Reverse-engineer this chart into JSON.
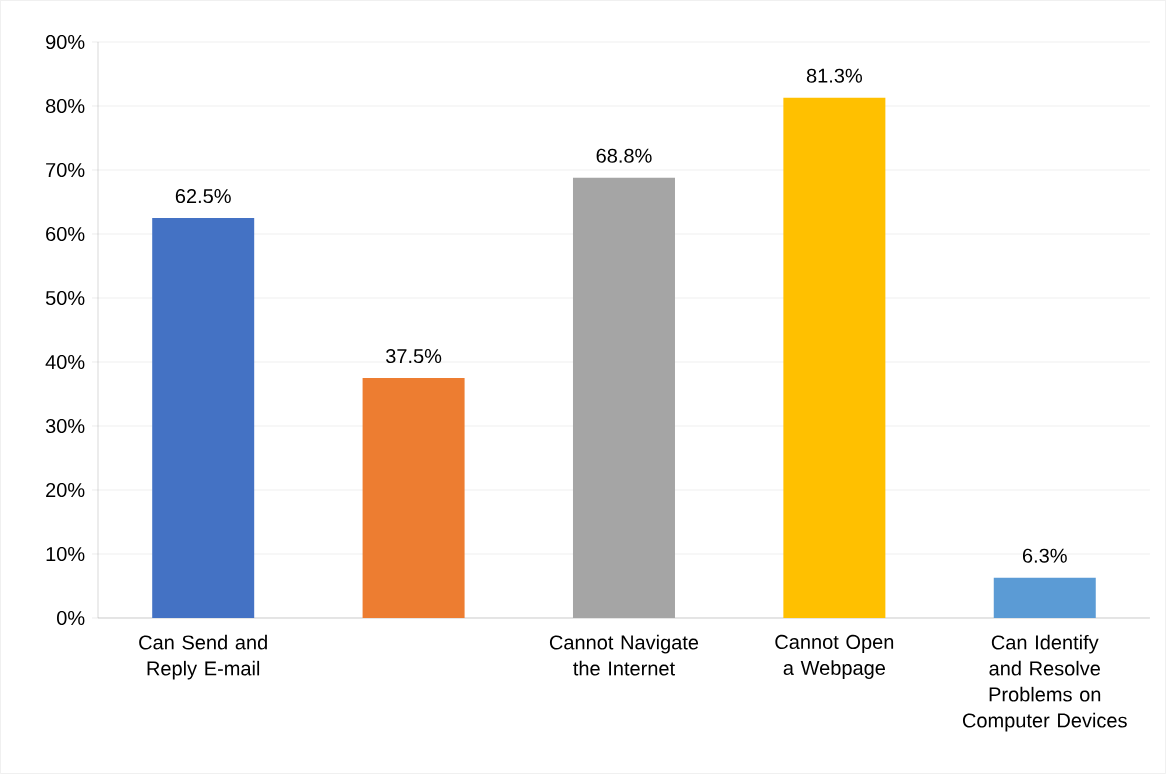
{
  "chart_data": {
    "type": "bar",
    "categories": [
      "Can Send and Reply E-mail",
      null,
      "Cannot Navigate the Internet",
      "Cannot Open a Webpage",
      "Can Identify and Resolve Problems on Computer Devices"
    ],
    "values": [
      62.5,
      37.5,
      68.8,
      81.3,
      6.3
    ],
    "colors": [
      "#4472c4",
      "#ed7d31",
      "#a5a5a5",
      "#ffc000",
      "#5b9bd5"
    ],
    "value_labels": [
      "62.5%",
      "37.5%",
      "68.8%",
      "81.3%",
      "6.3%"
    ],
    "ylim": [
      0,
      90
    ],
    "yticks": [
      {
        "value": 0,
        "label": "0%"
      },
      {
        "value": 10,
        "label": "10%"
      },
      {
        "value": 20,
        "label": "20%"
      },
      {
        "value": 30,
        "label": "30%"
      },
      {
        "value": 40,
        "label": "40%"
      },
      {
        "value": 50,
        "label": "50%"
      },
      {
        "value": 60,
        "label": "60%"
      },
      {
        "value": 70,
        "label": "70%"
      },
      {
        "value": 80,
        "label": "80%"
      },
      {
        "value": 90,
        "label": "90%"
      }
    ],
    "grid": "y"
  }
}
